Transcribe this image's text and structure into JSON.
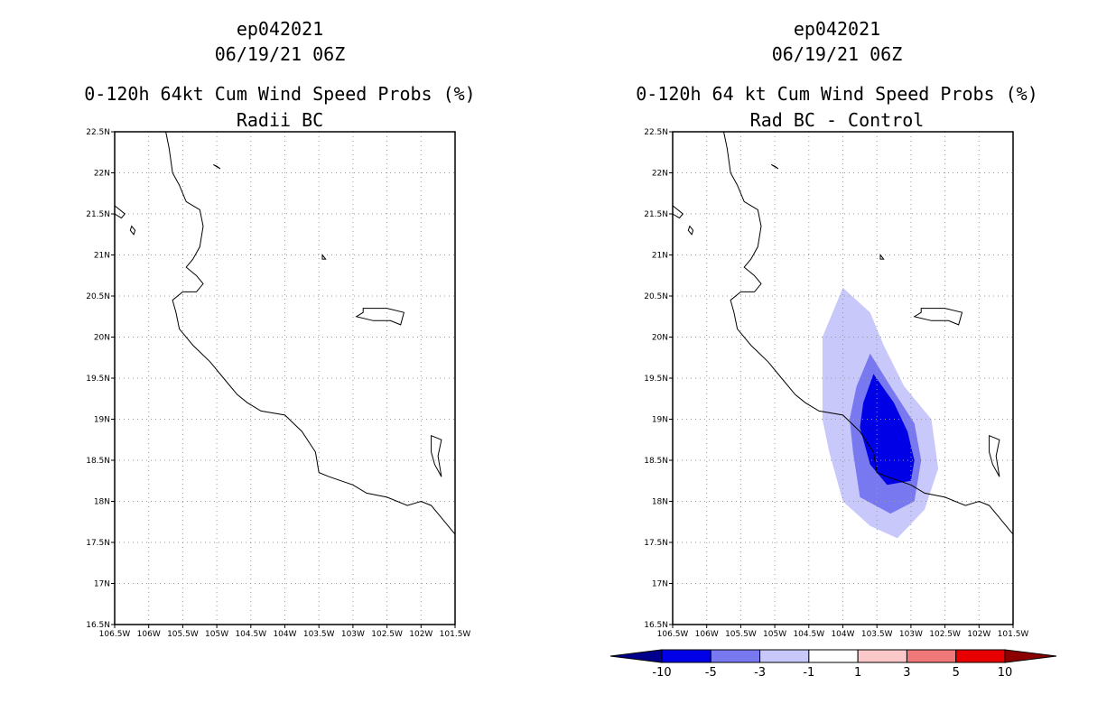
{
  "chart_data": [
    {
      "type": "map",
      "title_lines": [
        "ep042021",
        "06/19/21 06Z",
        "0-120h 64kt Cum Wind Speed Probs (%)",
        "Radii BC"
      ],
      "lat_ticks": [
        "22.5N",
        "22N",
        "21.5N",
        "21N",
        "20.5N",
        "20N",
        "19.5N",
        "19N",
        "18.5N",
        "18N",
        "17.5N",
        "17N",
        "16.5N"
      ],
      "lon_ticks": [
        "106.5W",
        "106W",
        "105.5W",
        "105W",
        "104.5W",
        "104W",
        "103.5W",
        "103W",
        "102.5W",
        "102W",
        "101.5W"
      ],
      "lat_range": [
        16.5,
        22.5
      ],
      "lon_range": [
        -106.5,
        -101.5
      ],
      "grid": true
    },
    {
      "type": "map",
      "title_lines": [
        "ep042021",
        "06/19/21 06Z",
        "0-120h 64 kt Cum Wind Speed Probs (%)",
        "Rad BC - Control"
      ],
      "lat_ticks": [
        "22.5N",
        "22N",
        "21.5N",
        "21N",
        "20.5N",
        "20N",
        "19.5N",
        "19N",
        "18.5N",
        "18N",
        "17.5N",
        "17N",
        "16.5N"
      ],
      "lon_ticks": [
        "106.5W",
        "106W",
        "105.5W",
        "105W",
        "104.5W",
        "104W",
        "103.5W",
        "103W",
        "102.5W",
        "102W",
        "101.5W"
      ],
      "lat_range": [
        16.5,
        22.5
      ],
      "lon_range": [
        -106.5,
        -101.5
      ],
      "grid": true,
      "contour_levels": [
        -10,
        -5,
        -3,
        -1,
        1,
        3,
        5,
        10
      ],
      "shaded_regions": [
        {
          "level": "-3 to -1",
          "color": "#c8c8fa",
          "lonlat": [
            [
              -104.0,
              20.6
            ],
            [
              -103.6,
              20.3
            ],
            [
              -103.4,
              19.9
            ],
            [
              -103.1,
              19.4
            ],
            [
              -102.7,
              19.0
            ],
            [
              -102.6,
              18.4
            ],
            [
              -102.8,
              17.9
            ],
            [
              -103.2,
              17.55
            ],
            [
              -103.6,
              17.7
            ],
            [
              -104.0,
              18.0
            ],
            [
              -104.2,
              18.6
            ],
            [
              -104.3,
              19.0
            ],
            [
              -104.3,
              19.6
            ],
            [
              -104.3,
              20.0
            ]
          ]
        },
        {
          "level": "-5 to -3",
          "color": "#7878f0",
          "lonlat": [
            [
              -103.6,
              19.8
            ],
            [
              -103.3,
              19.4
            ],
            [
              -102.95,
              18.95
            ],
            [
              -102.85,
              18.5
            ],
            [
              -102.95,
              18.0
            ],
            [
              -103.3,
              17.85
            ],
            [
              -103.75,
              18.05
            ],
            [
              -103.85,
              18.6
            ],
            [
              -103.9,
              19.0
            ],
            [
              -103.8,
              19.4
            ]
          ]
        },
        {
          "level": "-10 to -5",
          "color": "#0000e6",
          "lonlat": [
            [
              -103.55,
              19.55
            ],
            [
              -103.25,
              19.2
            ],
            [
              -103.05,
              18.85
            ],
            [
              -102.95,
              18.5
            ],
            [
              -103.0,
              18.25
            ],
            [
              -103.35,
              18.2
            ],
            [
              -103.6,
              18.45
            ],
            [
              -103.75,
              18.9
            ],
            [
              -103.7,
              19.2
            ]
          ]
        }
      ],
      "colorbar": {
        "labels": [
          "-10",
          "-5",
          "-3",
          "-1",
          "1",
          "3",
          "5",
          "10"
        ],
        "colors": [
          "#00008c",
          "#0000e6",
          "#7878f0",
          "#c8c8fa",
          "#ffffff",
          "#fac8c8",
          "#f07878",
          "#e60000",
          "#8c0000"
        ]
      }
    }
  ]
}
